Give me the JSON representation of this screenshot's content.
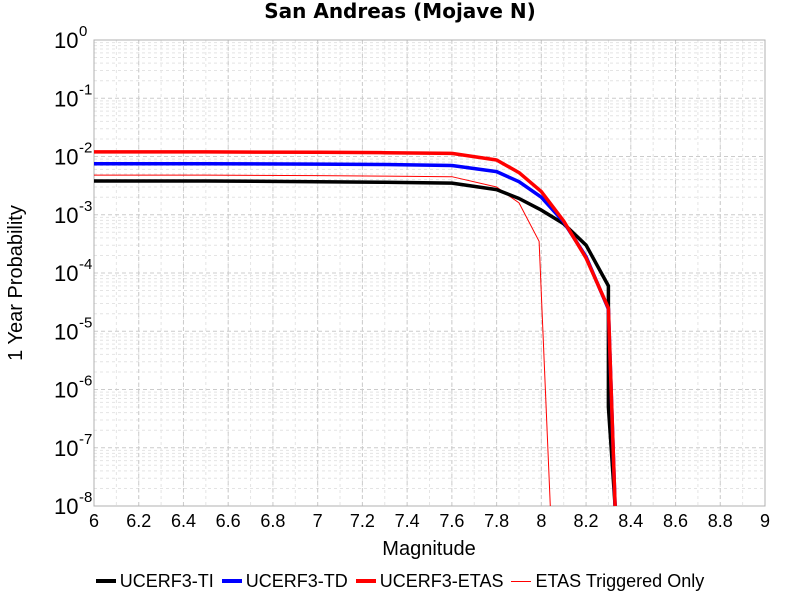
{
  "chart_data": {
    "type": "line",
    "title": "San Andreas (Mojave N)",
    "xlabel": "Magnitude",
    "ylabel": "1 Year Probability",
    "xlim": [
      6,
      9
    ],
    "ylim": [
      1e-08,
      1
    ],
    "yscale": "log",
    "grid": true,
    "legend_position": "bottom",
    "x_ticks": [
      "6",
      "6.2",
      "6.4",
      "6.6",
      "6.8",
      "7",
      "7.2",
      "7.4",
      "7.6",
      "7.8",
      "8",
      "8.2",
      "8.4",
      "8.6",
      "8.8",
      "9"
    ],
    "y_ticks": [
      {
        "base": "10",
        "exp": "0"
      },
      {
        "base": "10",
        "exp": "-1"
      },
      {
        "base": "10",
        "exp": "-2"
      },
      {
        "base": "10",
        "exp": "-3"
      },
      {
        "base": "10",
        "exp": "-4"
      },
      {
        "base": "10",
        "exp": "-5"
      },
      {
        "base": "10",
        "exp": "-6"
      },
      {
        "base": "10",
        "exp": "-7"
      },
      {
        "base": "10",
        "exp": "-8"
      }
    ],
    "series": [
      {
        "name": "UCERF3-TI",
        "color": "#000000",
        "style": "thick",
        "x": [
          6.0,
          6.5,
          7.0,
          7.3,
          7.6,
          7.8,
          7.9,
          8.0,
          8.1,
          8.2,
          8.3,
          8.3,
          8.33
        ],
        "y": [
          0.0038,
          0.0038,
          0.0037,
          0.0036,
          0.0035,
          0.0027,
          0.0019,
          0.0012,
          0.0007,
          0.0003,
          6e-05,
          5e-07,
          1e-08
        ]
      },
      {
        "name": "UCERF3-TD",
        "color": "#0000ff",
        "style": "thick",
        "x": [
          6.0,
          6.5,
          7.0,
          7.3,
          7.6,
          7.8,
          7.9,
          8.0,
          8.1,
          8.2,
          8.3,
          8.33
        ],
        "y": [
          0.0075,
          0.0075,
          0.0074,
          0.0073,
          0.007,
          0.0055,
          0.0037,
          0.002,
          0.00075,
          0.00019,
          2.4e-05,
          1e-08
        ]
      },
      {
        "name": "UCERF3-ETAS",
        "color": "#ff0000",
        "style": "thick",
        "x": [
          6.0,
          6.5,
          7.0,
          7.3,
          7.6,
          7.8,
          7.9,
          8.0,
          8.1,
          8.2,
          8.3,
          8.33
        ],
        "y": [
          0.012,
          0.012,
          0.0118,
          0.0116,
          0.0113,
          0.0087,
          0.0053,
          0.0025,
          0.00078,
          0.00018,
          2.5e-05,
          1e-08
        ]
      },
      {
        "name": "ETAS Triggered Only",
        "color": "#ff0000",
        "style": "thin",
        "x": [
          6.0,
          6.5,
          7.0,
          7.3,
          7.6,
          7.8,
          7.9,
          7.99,
          8.04
        ],
        "y": [
          0.0048,
          0.0048,
          0.0047,
          0.0046,
          0.0045,
          0.003,
          0.0016,
          0.00035,
          1e-08
        ]
      }
    ]
  }
}
